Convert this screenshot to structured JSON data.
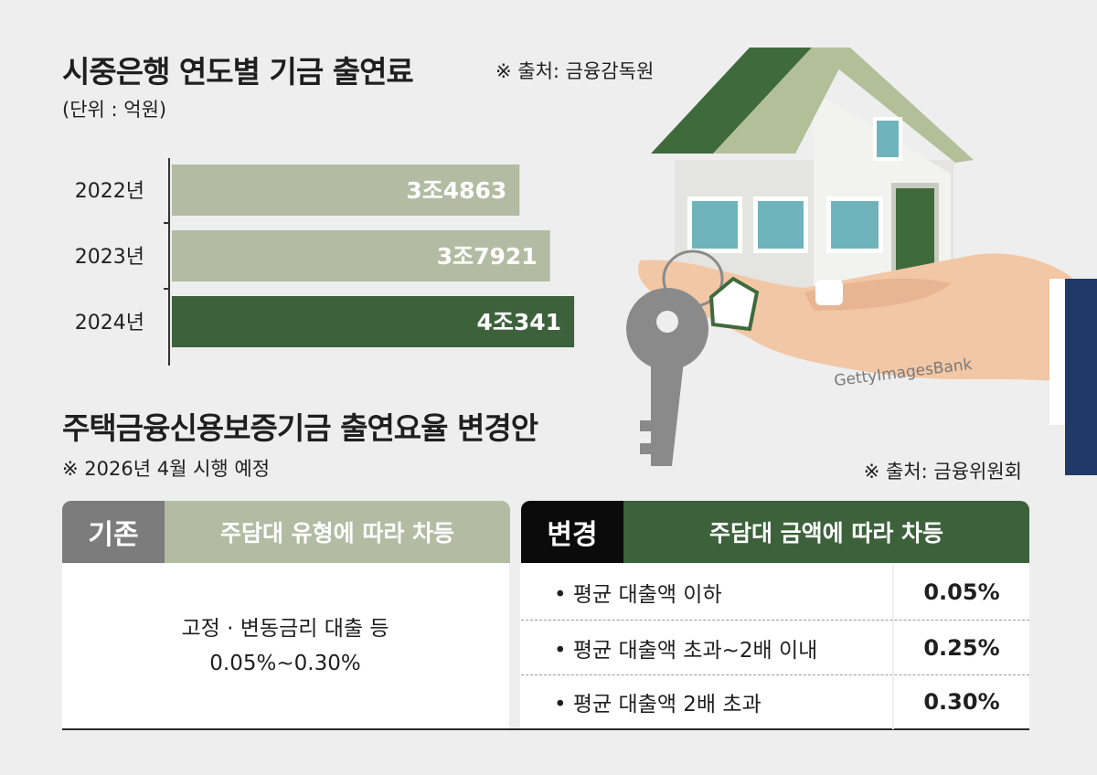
{
  "top": {
    "title": "시중은행 연도별 기금 출연료",
    "source": "※ 출처: 금융감독원",
    "unit": "(단위 : 억원)"
  },
  "chart_data": {
    "type": "bar",
    "orientation": "horizontal",
    "title": "시중은행 연도별 기금 출연료",
    "ylabel": "",
    "xlabel": "",
    "unit": "억원",
    "categories": [
      "2022년",
      "2023년",
      "2024년"
    ],
    "values": [
      34863,
      37921,
      40341
    ],
    "data_labels": [
      "3조4863",
      "3조7921",
      "4조341"
    ],
    "colors": [
      "#b3bca3",
      "#b3bca3",
      "#3c613b"
    ],
    "xlim": [
      0,
      55000
    ],
    "grid": false,
    "legend": "none"
  },
  "bottom": {
    "title": "주택금융신용보증기금 출연요율 변경안",
    "note": "※ 2026년 4월 시행 예정",
    "source": "※ 출처: 금융위원회",
    "old": {
      "tag": "기존",
      "header": "주담대 유형에 따라 차등",
      "line1": "고정 · 변동금리 대출 등",
      "line2": "0.05%~0.30%"
    },
    "new": {
      "tag": "변경",
      "header": "주담대 금액에 따라 차등",
      "rows": [
        {
          "label": "• 평균 대출액 이하",
          "value": "0.05%"
        },
        {
          "label": "• 평균 대출액 초과~2배 이내",
          "value": "0.25%"
        },
        {
          "label": "• 평균 대출액 2배 초과",
          "value": "0.30%"
        }
      ]
    }
  },
  "illustration": {
    "watermark": "GettyImagesBank",
    "colors": {
      "roof": "#3f6a3c",
      "wall": "#e9e9e6",
      "window": "#6fb4bd",
      "door": "#3f6a3c",
      "hand": "#f2c7a6",
      "key": "#8a8a8a",
      "sleeve": "#1f3a66"
    }
  }
}
